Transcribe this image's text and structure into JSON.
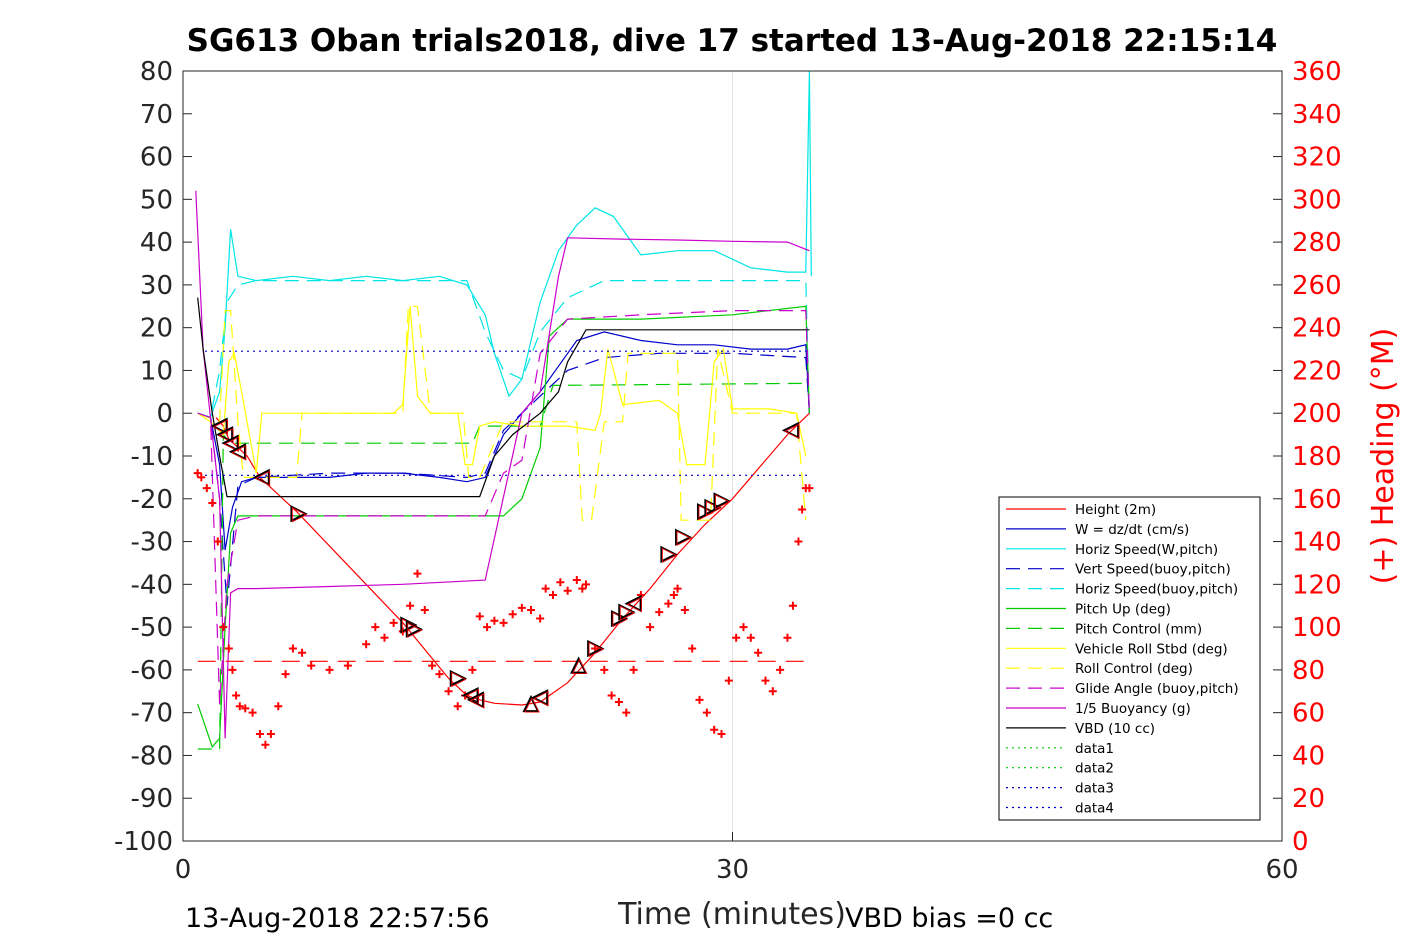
{
  "chart_data": {
    "type": "line",
    "title": "SG613 Oban trials2018, dive 17 started 13-Aug-2018 22:15:14",
    "xlabel": "Time (minutes)",
    "ylabel": "",
    "y2label": "(+) Heading (°M)",
    "xlim": [
      0,
      60
    ],
    "ylim": [
      -100,
      80
    ],
    "y2lim": [
      0,
      360
    ],
    "xticks": [
      0,
      30,
      60
    ],
    "yticks": [
      -100,
      -90,
      -80,
      -70,
      -60,
      -50,
      -40,
      -30,
      -20,
      -10,
      0,
      10,
      20,
      30,
      40,
      50,
      60,
      70,
      80
    ],
    "y2ticks": [
      0,
      20,
      40,
      60,
      80,
      100,
      120,
      140,
      160,
      180,
      200,
      220,
      240,
      260,
      280,
      300,
      320,
      340,
      360
    ],
    "grid": "x-only",
    "legend_position": "bottom-right",
    "footer_left": "13-Aug-2018 22:57:56",
    "footer_right": "VBD bias =0 cc",
    "colors": {
      "red": "#ff0000",
      "blue": "#0000cc",
      "cyan": "#00e5e5",
      "green": "#00cc00",
      "yellow": "#ffff00",
      "magenta": "#cc00cc",
      "black": "#000000"
    },
    "series": [
      {
        "name": "Height (2m)",
        "color": "#ff0000",
        "style": "solid",
        "axis": "left",
        "x": [
          1.8,
          2.2,
          2.5,
          3.0,
          3.5,
          4.2,
          6.2,
          12.0,
          14.5,
          15.5,
          16.2,
          17.0,
          18.5,
          19.5,
          21.0,
          22.5,
          24.0,
          25.5,
          27.0,
          28.5,
          30.0,
          33.0,
          34.2
        ],
        "y": [
          -1,
          -3,
          -6,
          -8,
          -10,
          -15,
          -23,
          -49,
          -62,
          -66,
          -67,
          -67.8,
          -68.2,
          -67.5,
          -63,
          -56,
          -48,
          -41,
          -33,
          -26,
          -20,
          -5,
          0
        ]
      },
      {
        "name": "W = dz/dt (cm/s)",
        "color": "#0000cc",
        "style": "solid",
        "axis": "left",
        "x": [
          0.8,
          1.5,
          2.0,
          2.3,
          2.7,
          3.2,
          4.0,
          6.0,
          8.0,
          10.0,
          12.0,
          14.0,
          15.5,
          16.5,
          17.5,
          18.5,
          19.5,
          20.5,
          21.5,
          23.0,
          25.0,
          27.0,
          29.0,
          31.0,
          33.0,
          34.0,
          34.2
        ],
        "y": [
          0,
          -1,
          -12,
          -32,
          -22,
          -16,
          -15,
          -15,
          -15,
          -14,
          -14,
          -15,
          -16,
          -15,
          -5,
          0,
          5,
          11,
          17,
          19,
          17,
          16,
          16,
          15,
          15,
          16,
          0
        ]
      },
      {
        "name": "Horiz Speed(W,pitch)",
        "color": "#00e5e5",
        "style": "solid",
        "axis": "left",
        "x": [
          0.8,
          1.5,
          2.0,
          2.3,
          2.6,
          3.0,
          4.0,
          6.0,
          8.0,
          10.0,
          12.0,
          14.0,
          15.5,
          16.5,
          17.0,
          17.8,
          18.5,
          19.5,
          20.5,
          21.5,
          22.5,
          23.5,
          25.0,
          27.0,
          29.0,
          31.0,
          33.0,
          34.0,
          34.2,
          34.3
        ],
        "y": [
          0,
          -1,
          5,
          20,
          43,
          32,
          31,
          32,
          31,
          32,
          31,
          32,
          30,
          23,
          14,
          4,
          8,
          26,
          38,
          44,
          48,
          46,
          37,
          38,
          38,
          34,
          33,
          33,
          80,
          32
        ]
      },
      {
        "name": "Vert Speed(buoy,pitch)",
        "color": "#0000cc",
        "style": "dash",
        "axis": "left",
        "x": [
          0.8,
          1.5,
          2.0,
          2.4,
          3.0,
          4.0,
          8.0,
          12.0,
          15.5,
          16.5,
          17.5,
          18.5,
          19.5,
          21.0,
          23.0,
          26.0,
          30.0,
          34.0,
          34.2
        ],
        "y": [
          0,
          -1,
          -20,
          -45,
          -17,
          -15,
          -14,
          -14,
          -15,
          -14,
          -4,
          0,
          4,
          10,
          13,
          14,
          14,
          13,
          0
        ]
      },
      {
        "name": "Horiz Speed(buoy,pitch)",
        "color": "#00e5e5",
        "style": "dash",
        "axis": "left",
        "x": [
          0.8,
          1.5,
          2.0,
          2.4,
          3.0,
          4.0,
          8.0,
          12.0,
          15.5,
          16.5,
          17.5,
          18.5,
          19.5,
          21.0,
          23.0,
          26.0,
          30.0,
          34.0,
          34.2
        ],
        "y": [
          0,
          -1,
          10,
          26,
          30,
          31,
          31,
          31,
          31,
          19,
          10,
          8,
          19,
          27,
          31,
          31,
          31,
          31,
          0
        ]
      },
      {
        "name": "Pitch Up (deg)",
        "color": "#00cc00",
        "style": "solid",
        "axis": "left",
        "x": [
          0.8,
          1.6,
          2.0,
          2.3,
          2.6,
          3.0,
          4.0,
          8.0,
          12.0,
          15.5,
          16.5,
          17.5,
          18.5,
          19.5,
          20.0,
          21.0,
          25.0,
          30.0,
          34.0,
          34.2
        ],
        "y": [
          -68,
          -78,
          -76,
          -50,
          -28,
          -24,
          -24,
          -24,
          -24,
          -24,
          -24,
          -24,
          -20,
          -8,
          18,
          22,
          22,
          23,
          25,
          0
        ]
      },
      {
        "name": "Pitch Control (mm)",
        "color": "#00cc00",
        "style": "dash",
        "axis": "left",
        "x": [
          0.8,
          2.0,
          2.2,
          2.6,
          4.0,
          15.8,
          16.2,
          19.5,
          20.2,
          34.2
        ],
        "y": [
          -78.5,
          -78.5,
          -5,
          -7,
          -7,
          -7,
          -3,
          -3,
          6.5,
          7
        ]
      },
      {
        "name": "Vehicle Roll Stbd (deg)",
        "color": "#ffff00",
        "style": "solid",
        "axis": "left",
        "x": [
          0.8,
          1.5,
          2.2,
          2.5,
          2.8,
          3.2,
          4.0,
          4.3,
          5.0,
          6.0,
          8.0,
          10.0,
          11.5,
          12.0,
          12.4,
          12.8,
          13.5,
          15.0,
          15.4,
          15.8,
          16.2,
          17.0,
          18.5,
          19.5,
          21.0,
          22.5,
          22.8,
          23.2,
          24.0,
          26.0,
          27.0,
          27.5,
          28.5,
          29.0,
          29.5,
          30.0,
          32.0,
          33.5,
          34.0
        ],
        "y": [
          0,
          -2,
          -5,
          12,
          14,
          5,
          -14,
          0,
          0,
          0,
          0,
          0,
          0,
          2,
          25,
          4,
          0,
          0,
          -12,
          -12,
          -3,
          -2,
          -3,
          -3,
          -3,
          -4,
          0,
          15,
          2,
          3,
          0,
          -12,
          -12,
          12,
          15,
          1,
          1,
          0,
          -10
        ]
      },
      {
        "name": "Roll Control (deg)",
        "color": "#ffff00",
        "style": "dash",
        "axis": "left",
        "x": [
          0.8,
          2.0,
          2.3,
          2.6,
          3.0,
          3.3,
          4.0,
          6.2,
          6.5,
          12.0,
          12.3,
          12.8,
          13.5,
          15.3,
          15.6,
          16.2,
          17.5,
          20.0,
          21.5,
          21.8,
          22.3,
          23.0,
          24.0,
          24.3,
          27.0,
          27.2,
          27.8,
          28.8,
          29.2,
          30.0,
          33.5,
          34.0
        ],
        "y": [
          0,
          -2,
          24,
          24,
          -2,
          -15,
          -15,
          -15,
          0,
          0,
          25,
          25,
          0,
          0,
          -15,
          -15,
          -2,
          -2,
          -2,
          -25,
          -25,
          -2,
          -2,
          14,
          14,
          -25,
          -25,
          -25,
          15,
          0,
          0,
          -25
        ]
      },
      {
        "name": "Glide Angle (buoy,pitch)",
        "color": "#cc00cc",
        "style": "dash",
        "axis": "left",
        "x": [
          0.8,
          1.5,
          2.0,
          2.4,
          3.0,
          4.0,
          8.0,
          12.0,
          15.5,
          16.5,
          17.5,
          18.5,
          19.5,
          21.0,
          25.0,
          30.0,
          34.0,
          34.2
        ],
        "y": [
          0,
          -1,
          -68,
          -40,
          -25,
          -24,
          -24,
          -24,
          -24,
          -24,
          -14,
          -11,
          14,
          22,
          23,
          24,
          24,
          0
        ]
      },
      {
        "name": "1/5 Buoyancy (g)",
        "color": "#cc00cc",
        "style": "solid",
        "axis": "left",
        "x": [
          0.7,
          1.1,
          1.6,
          2.0,
          2.3,
          2.6,
          3.0,
          4.0,
          8.0,
          12.0,
          16.5,
          18.5,
          19.5,
          20.5,
          21.0,
          24.0,
          27.0,
          30.0,
          33.0,
          34.2
        ],
        "y": [
          52,
          15,
          -5,
          -20,
          -76,
          -42,
          -41,
          -41,
          -40.5,
          -40,
          -39,
          0,
          5,
          32,
          41,
          40.7,
          40.5,
          40.2,
          40,
          38
        ]
      },
      {
        "name": "VBD (10 cc)",
        "color": "#000000",
        "style": "solid",
        "axis": "left",
        "x": [
          0.8,
          1.1,
          1.6,
          2.0,
          2.4,
          16.2,
          17.0,
          18.0,
          19.5,
          20.5,
          21.0,
          22.0,
          34.2
        ],
        "y": [
          27,
          15,
          0,
          -10,
          -19.5,
          -19.5,
          -10,
          -5,
          0,
          5,
          12,
          19.5,
          19.5
        ]
      },
      {
        "name": "data1",
        "color": "#00cc00",
        "style": "dot",
        "axis": "left",
        "x": [],
        "y": []
      },
      {
        "name": "data2",
        "color": "#00cc00",
        "style": "dot",
        "axis": "left",
        "x": [],
        "y": []
      },
      {
        "name": "data3",
        "color": "#0000cc",
        "style": "dot",
        "axis": "left",
        "x": [
          1.2,
          34.2
        ],
        "y": [
          14.5,
          14.5
        ]
      },
      {
        "name": "data4",
        "color": "#0000cc",
        "style": "dot",
        "axis": "left",
        "x": [
          1.2,
          34.2
        ],
        "y": [
          -14.5,
          -14.5
        ]
      },
      {
        "name": "",
        "color": "#ff0000",
        "style": "longdash",
        "axis": "left",
        "x": [
          0.8,
          34.2
        ],
        "y": [
          -58,
          -58
        ]
      }
    ],
    "heading": {
      "axis": "right",
      "color": "#ff0000",
      "marker": "+",
      "x": [
        0.8,
        1.0,
        1.3,
        1.6,
        1.9,
        2.2,
        2.5,
        2.7,
        2.9,
        3.1,
        3.4,
        3.8,
        4.2,
        4.5,
        4.8,
        5.2,
        5.6,
        6.0,
        6.5,
        7.0,
        8.0,
        9.0,
        10.0,
        10.5,
        11.0,
        11.5,
        12.0,
        12.4,
        12.8,
        13.2,
        13.6,
        14.0,
        14.5,
        15.0,
        15.4,
        15.8,
        16.2,
        16.6,
        17.0,
        17.5,
        18.0,
        18.5,
        19.0,
        19.5,
        19.8,
        20.2,
        20.6,
        21.0,
        21.5,
        21.8,
        22.0,
        22.5,
        23.0,
        23.4,
        23.8,
        24.2,
        24.6,
        25.0,
        25.5,
        26.0,
        26.5,
        26.8,
        27.0,
        27.4,
        27.8,
        28.2,
        28.6,
        29.0,
        29.4,
        29.8,
        30.2,
        30.6,
        31.0,
        31.4,
        31.8,
        32.2,
        32.6,
        33.0,
        33.3,
        33.6,
        33.8,
        34.0,
        34.2
      ],
      "y": [
        172,
        170,
        165,
        158,
        140,
        100,
        90,
        80,
        68,
        63,
        62,
        60,
        50,
        45,
        50,
        63,
        78,
        90,
        88,
        82,
        80,
        82,
        92,
        100,
        95,
        102,
        98,
        110,
        125,
        108,
        82,
        78,
        70,
        63,
        68,
        80,
        105,
        100,
        103,
        102,
        106,
        109,
        108,
        104,
        118,
        115,
        121,
        117,
        122,
        118,
        120,
        90,
        80,
        68,
        65,
        60,
        80,
        115,
        100,
        107,
        111,
        115,
        118,
        108,
        90,
        66,
        60,
        52,
        50,
        75,
        95,
        100,
        95,
        88,
        75,
        70,
        80,
        95,
        110,
        140,
        155,
        165,
        165
      ]
    },
    "markers": {
      "color": "#000000",
      "edge_color": "#ff0000",
      "points": [
        {
          "x": 2.0,
          "y": -3,
          "dir": "left"
        },
        {
          "x": 2.3,
          "y": -5,
          "dir": "left"
        },
        {
          "x": 2.6,
          "y": -7,
          "dir": "left"
        },
        {
          "x": 3.0,
          "y": -9,
          "dir": "left"
        },
        {
          "x": 4.3,
          "y": -15,
          "dir": "left"
        },
        {
          "x": 6.3,
          "y": -23.5,
          "dir": "right"
        },
        {
          "x": 12.3,
          "y": -49.5,
          "dir": "right"
        },
        {
          "x": 12.6,
          "y": -50.5,
          "dir": "right"
        },
        {
          "x": 15.0,
          "y": -62,
          "dir": "right"
        },
        {
          "x": 15.7,
          "y": -66,
          "dir": "left"
        },
        {
          "x": 16.0,
          "y": -67,
          "dir": "left"
        },
        {
          "x": 19.0,
          "y": -68,
          "dir": "up"
        },
        {
          "x": 19.5,
          "y": -66.5,
          "dir": "left"
        },
        {
          "x": 21.6,
          "y": -59,
          "dir": "up"
        },
        {
          "x": 22.5,
          "y": -55,
          "dir": "right"
        },
        {
          "x": 23.8,
          "y": -48,
          "dir": "right"
        },
        {
          "x": 24.2,
          "y": -46.5,
          "dir": "right"
        },
        {
          "x": 24.6,
          "y": -44.5,
          "dir": "left"
        },
        {
          "x": 26.5,
          "y": -33,
          "dir": "right"
        },
        {
          "x": 27.3,
          "y": -29,
          "dir": "right"
        },
        {
          "x": 28.5,
          "y": -23,
          "dir": "right"
        },
        {
          "x": 28.9,
          "y": -22,
          "dir": "right"
        },
        {
          "x": 29.4,
          "y": -20.5,
          "dir": "right"
        },
        {
          "x": 33.2,
          "y": -4,
          "dir": "left"
        }
      ]
    }
  }
}
